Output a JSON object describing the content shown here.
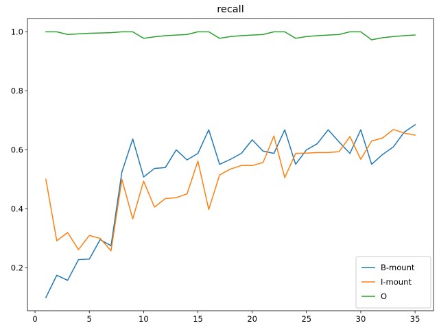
{
  "chart_data": {
    "type": "line",
    "title": "recall",
    "xlabel": "",
    "ylabel": "",
    "xlim": [
      -0.7,
      36.7
    ],
    "ylim": [
      0.055,
      1.045
    ],
    "x_ticks": [
      0,
      5,
      10,
      15,
      20,
      25,
      30,
      35
    ],
    "y_ticks": [
      0.2,
      0.4,
      0.6,
      0.8,
      1.0
    ],
    "x_tick_labels": [
      "0",
      "5",
      "10",
      "15",
      "20",
      "25",
      "30",
      "35"
    ],
    "y_tick_labels": [
      "0.2",
      "0.4",
      "0.6",
      "0.8",
      "1.0"
    ],
    "grid": false,
    "legend_position": "lower-right",
    "x": [
      1,
      2,
      3,
      4,
      5,
      6,
      7,
      8,
      9,
      10,
      11,
      12,
      13,
      14,
      15,
      16,
      17,
      18,
      19,
      20,
      21,
      22,
      23,
      24,
      25,
      26,
      27,
      28,
      29,
      30,
      31,
      32,
      33,
      34,
      35
    ],
    "series": [
      {
        "name": "B-mount",
        "color": "#1f77b4",
        "values": [
          0.1,
          0.175,
          0.158,
          0.228,
          0.23,
          0.296,
          0.275,
          0.525,
          0.637,
          0.508,
          0.537,
          0.54,
          0.6,
          0.566,
          0.588,
          0.668,
          0.551,
          0.568,
          0.588,
          0.634,
          0.596,
          0.588,
          0.668,
          0.551,
          0.6,
          0.621,
          0.668,
          0.627,
          0.588,
          0.668,
          0.551,
          0.584,
          0.61,
          0.66,
          0.685
        ]
      },
      {
        "name": "I-mount",
        "color": "#ff7f0e",
        "values": [
          0.5,
          0.292,
          0.32,
          0.262,
          0.31,
          0.3,
          0.258,
          0.5,
          0.366,
          0.494,
          0.406,
          0.435,
          0.438,
          0.451,
          0.562,
          0.398,
          0.515,
          0.535,
          0.547,
          0.547,
          0.557,
          0.647,
          0.506,
          0.588,
          0.589,
          0.591,
          0.591,
          0.594,
          0.645,
          0.568,
          0.63,
          0.64,
          0.669,
          0.657,
          0.65
        ]
      },
      {
        "name": "O",
        "color": "#2ca02c",
        "values": [
          1.0,
          1.0,
          0.991,
          0.993,
          0.995,
          0.996,
          0.997,
          1.0,
          1.0,
          0.978,
          0.983,
          0.987,
          0.989,
          0.991,
          1.0,
          1.0,
          0.978,
          0.984,
          0.987,
          0.989,
          0.991,
          1.0,
          1.0,
          0.978,
          0.984,
          0.987,
          0.989,
          0.991,
          1.0,
          1.0,
          0.973,
          0.98,
          0.984,
          0.987,
          0.989
        ]
      }
    ]
  }
}
